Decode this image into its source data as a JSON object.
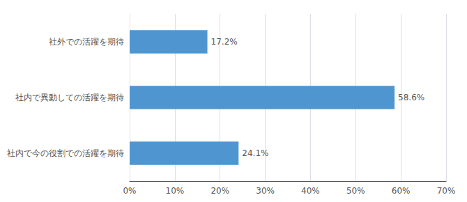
{
  "chart_data": {
    "type": "bar",
    "orientation": "horizontal",
    "categories": [
      "社外での活躍を期待",
      "社内で異動しての活躍を期待",
      "社内で今の役割での活躍を期待"
    ],
    "values": [
      17.2,
      58.6,
      24.1
    ],
    "value_labels": [
      "17.2%",
      "58.6%",
      "24.1%"
    ],
    "data_labels": true,
    "color": "#4f96d0",
    "xlim": [
      0,
      70
    ],
    "xticks": [
      {
        "value": 0,
        "label": "0%"
      },
      {
        "value": 10,
        "label": "10%"
      },
      {
        "value": 20,
        "label": "20%"
      },
      {
        "value": 30,
        "label": "30%"
      },
      {
        "value": 40,
        "label": "40%"
      },
      {
        "value": 50,
        "label": "50%"
      },
      {
        "value": 60,
        "label": "60%"
      },
      {
        "value": 70,
        "label": "70%"
      }
    ],
    "grid": true
  }
}
